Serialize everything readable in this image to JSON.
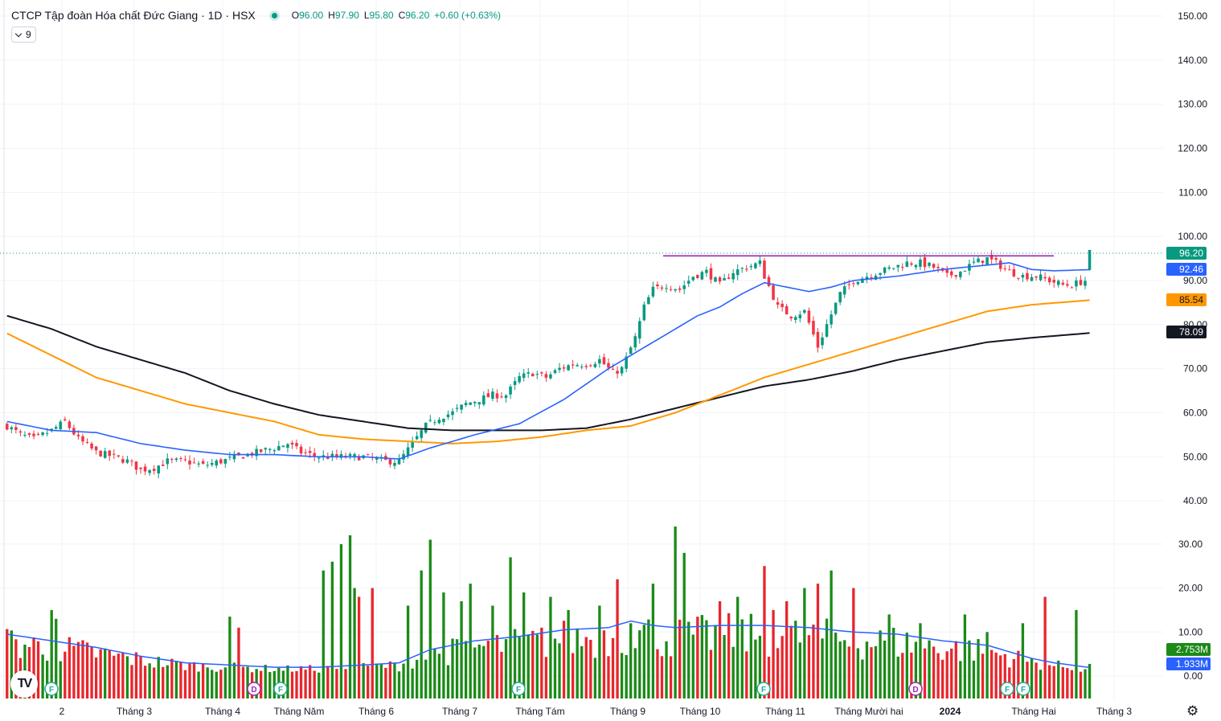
{
  "header": {
    "title": "CTCP Tập đoàn Hóa chất Đức Giang · 1D · HSX",
    "o_key": "O",
    "o_val": "96.00",
    "h_key": "H",
    "h_val": "97.90",
    "l_key": "L",
    "l_val": "95.80",
    "c_key": "C",
    "c_val": "96.20",
    "change": "+0.60 (+0.63%)",
    "indicator_count": "9"
  },
  "colors": {
    "up": "#089981",
    "down": "#f23645",
    "vol_up": "#1b8a17",
    "vol_down": "#e8262c",
    "ma_short": "#2962ff",
    "ma_mid": "#ff9800",
    "ma_long": "#131722",
    "resistance": "#9c27b0",
    "badge_price": "#089981"
  },
  "icons": {
    "logo": "tradingview-logo-icon",
    "settings": "gear-icon"
  },
  "chart_data": {
    "type": "candlestick",
    "y_axis": {
      "price_ticks": [
        "150.00",
        "140.00",
        "130.00",
        "120.00",
        "110.00",
        "100.00",
        "90.00",
        "80.00",
        "70.00",
        "60.00",
        "50.00",
        "40.00"
      ],
      "volume_ticks": [
        "30.00",
        "20.00",
        "10.00",
        "0.00"
      ]
    },
    "x_axis": {
      "labels": [
        "2",
        "Tháng 3",
        "Tháng 4",
        "Tháng Năm",
        "Tháng 6",
        "Tháng 7",
        "Tháng Tám",
        "Tháng 9",
        "Tháng 10",
        "Tháng 11",
        "Tháng Mười hai",
        "2024",
        "Tháng Hai",
        "Tháng 3"
      ],
      "bold": [
        "2024"
      ]
    },
    "price_range": [
      40,
      150
    ],
    "volume_range": [
      0,
      35
    ],
    "badges": {
      "last": "96.20",
      "ma_short": "92.46",
      "ma_mid": "85.54",
      "ma_long": "78.09",
      "vol_last": "2.753M",
      "vol_ma": "1.933M"
    },
    "last_price": 96.2,
    "resistance_level": 95.6,
    "anchors": {
      "close": [
        [
          0,
          57
        ],
        [
          3,
          55
        ],
        [
          6,
          54
        ],
        [
          10,
          56
        ],
        [
          13,
          58
        ],
        [
          16,
          54
        ],
        [
          20,
          51
        ],
        [
          24,
          50
        ],
        [
          27,
          49
        ],
        [
          30,
          47
        ],
        [
          33,
          47.5
        ],
        [
          36,
          49
        ],
        [
          40,
          49
        ],
        [
          44,
          48
        ],
        [
          48,
          49
        ],
        [
          52,
          50
        ],
        [
          56,
          51
        ],
        [
          60,
          52
        ],
        [
          63,
          53
        ],
        [
          66,
          51
        ],
        [
          70,
          50
        ],
        [
          75,
          50
        ],
        [
          80,
          50
        ],
        [
          85,
          49
        ],
        [
          88,
          49
        ],
        [
          91,
          53
        ],
        [
          94,
          57
        ],
        [
          97,
          59
        ],
        [
          100,
          60
        ],
        [
          103,
          62
        ],
        [
          106,
          63
        ],
        [
          109,
          64
        ],
        [
          112,
          64
        ],
        [
          115,
          68
        ],
        [
          118,
          69
        ],
        [
          121,
          68
        ],
        [
          124,
          70
        ],
        [
          127,
          71
        ],
        [
          130,
          71
        ],
        [
          133,
          72
        ],
        [
          136,
          69
        ],
        [
          138,
          70
        ],
        [
          141,
          77
        ],
        [
          143,
          84
        ],
        [
          145,
          88
        ],
        [
          148,
          89
        ],
        [
          151,
          88
        ],
        [
          154,
          91
        ],
        [
          157,
          92
        ],
        [
          160,
          89
        ],
        [
          163,
          92
        ],
        [
          166,
          93
        ],
        [
          169,
          94
        ],
        [
          170,
          91
        ],
        [
          173,
          84
        ],
        [
          176,
          82
        ],
        [
          179,
          83
        ],
        [
          182,
          75
        ],
        [
          184,
          80
        ],
        [
          187,
          87
        ],
        [
          190,
          90
        ],
        [
          193,
          91
        ],
        [
          196,
          92
        ],
        [
          199,
          93
        ],
        [
          202,
          94
        ],
        [
          205,
          94
        ],
        [
          208,
          93
        ],
        [
          211,
          91
        ],
        [
          214,
          92
        ],
        [
          217,
          94
        ],
        [
          220,
          95
        ],
        [
          222,
          94
        ],
        [
          225,
          92
        ],
        [
          228,
          91
        ],
        [
          231,
          91
        ],
        [
          234,
          90
        ],
        [
          237,
          89
        ],
        [
          239,
          89
        ],
        [
          242,
          90
        ],
        [
          243,
          96.2
        ]
      ],
      "ma_short": [
        [
          0,
          58
        ],
        [
          10,
          56
        ],
        [
          20,
          55.5
        ],
        [
          30,
          53
        ],
        [
          40,
          51.5
        ],
        [
          50,
          50.5
        ],
        [
          60,
          50.5
        ],
        [
          70,
          50
        ],
        [
          80,
          50
        ],
        [
          88,
          49.5
        ],
        [
          95,
          52
        ],
        [
          105,
          55
        ],
        [
          115,
          57.5
        ],
        [
          125,
          63
        ],
        [
          135,
          70
        ],
        [
          140,
          73
        ],
        [
          145,
          76
        ],
        [
          150,
          79
        ],
        [
          155,
          82
        ],
        [
          160,
          84
        ],
        [
          165,
          87
        ],
        [
          170,
          89.5
        ],
        [
          175,
          88.5
        ],
        [
          180,
          87.5
        ],
        [
          185,
          88.5
        ],
        [
          190,
          90
        ],
        [
          200,
          91
        ],
        [
          210,
          92.5
        ],
        [
          220,
          93.5
        ],
        [
          225,
          94
        ],
        [
          230,
          92.5
        ],
        [
          235,
          92.2
        ],
        [
          243,
          92.46
        ]
      ],
      "ma_mid": [
        [
          0,
          78
        ],
        [
          20,
          68
        ],
        [
          40,
          62
        ],
        [
          60,
          58
        ],
        [
          70,
          55
        ],
        [
          80,
          54
        ],
        [
          90,
          53.5
        ],
        [
          100,
          53
        ],
        [
          110,
          53.5
        ],
        [
          120,
          54.5
        ],
        [
          130,
          56
        ],
        [
          140,
          57
        ],
        [
          150,
          60
        ],
        [
          160,
          64
        ],
        [
          170,
          68
        ],
        [
          180,
          71
        ],
        [
          190,
          74
        ],
        [
          200,
          77
        ],
        [
          210,
          80
        ],
        [
          220,
          83
        ],
        [
          230,
          84.5
        ],
        [
          243,
          85.54
        ]
      ],
      "ma_long": [
        [
          0,
          82
        ],
        [
          10,
          79
        ],
        [
          20,
          75
        ],
        [
          30,
          72
        ],
        [
          40,
          69
        ],
        [
          50,
          65
        ],
        [
          60,
          62
        ],
        [
          70,
          59.5
        ],
        [
          80,
          58
        ],
        [
          90,
          56.5
        ],
        [
          100,
          56
        ],
        [
          110,
          56
        ],
        [
          120,
          56
        ],
        [
          130,
          56.5
        ],
        [
          140,
          58.5
        ],
        [
          150,
          61
        ],
        [
          160,
          63.5
        ],
        [
          170,
          66
        ],
        [
          180,
          67.5
        ],
        [
          190,
          69.5
        ],
        [
          200,
          72
        ],
        [
          210,
          74
        ],
        [
          220,
          76
        ],
        [
          230,
          77
        ],
        [
          243,
          78.09
        ]
      ],
      "vol_ma": [
        [
          0,
          9.5
        ],
        [
          10,
          8
        ],
        [
          20,
          6.5
        ],
        [
          30,
          4.5
        ],
        [
          40,
          3
        ],
        [
          50,
          2.5
        ],
        [
          60,
          2
        ],
        [
          70,
          2
        ],
        [
          80,
          2.5
        ],
        [
          88,
          3
        ],
        [
          95,
          6
        ],
        [
          105,
          8
        ],
        [
          115,
          9
        ],
        [
          125,
          10.5
        ],
        [
          135,
          11
        ],
        [
          140,
          12.5
        ],
        [
          145,
          11.5
        ],
        [
          150,
          11
        ],
        [
          160,
          11.5
        ],
        [
          170,
          11.5
        ],
        [
          180,
          11
        ],
        [
          185,
          10.5
        ],
        [
          190,
          10
        ],
        [
          200,
          9.5
        ],
        [
          210,
          8
        ],
        [
          220,
          7
        ],
        [
          225,
          5.5
        ],
        [
          230,
          4
        ],
        [
          235,
          3
        ],
        [
          243,
          1.933
        ]
      ]
    },
    "volume_spikes": [
      [
        10,
        15
      ],
      [
        11,
        13
      ],
      [
        50,
        13.5
      ],
      [
        52,
        11
      ],
      [
        71,
        24
      ],
      [
        73,
        26
      ],
      [
        75,
        30
      ],
      [
        77,
        32
      ],
      [
        78,
        20
      ],
      [
        79,
        18
      ],
      [
        82,
        20
      ],
      [
        90,
        16
      ],
      [
        93,
        24
      ],
      [
        95,
        31
      ],
      [
        98,
        19
      ],
      [
        102,
        17
      ],
      [
        104,
        21
      ],
      [
        109,
        16
      ],
      [
        113,
        27
      ],
      [
        116,
        19
      ],
      [
        122,
        18
      ],
      [
        126,
        15
      ],
      [
        133,
        16
      ],
      [
        137,
        22
      ],
      [
        140,
        12
      ],
      [
        145,
        21
      ],
      [
        150,
        34
      ],
      [
        152,
        28
      ],
      [
        160,
        17
      ],
      [
        164,
        18
      ],
      [
        170,
        25
      ],
      [
        172,
        15
      ],
      [
        175,
        17
      ],
      [
        179,
        20
      ],
      [
        182,
        21
      ],
      [
        185,
        24
      ],
      [
        190,
        20
      ],
      [
        198,
        14
      ],
      [
        205,
        12
      ],
      [
        215,
        14
      ],
      [
        220,
        10
      ],
      [
        228,
        12
      ],
      [
        233,
        18
      ],
      [
        240,
        15
      ],
      [
        243,
        2.753
      ]
    ],
    "events": [
      {
        "label": "F",
        "kind": "F"
      },
      {
        "label": "D",
        "kind": "D"
      },
      {
        "label": "F",
        "kind": "F"
      },
      {
        "label": "F",
        "kind": "F"
      },
      {
        "label": "F",
        "kind": "F"
      },
      {
        "label": "D",
        "kind": "D"
      },
      {
        "label": "F",
        "kind": "F"
      },
      {
        "label": "F",
        "kind": "F"
      }
    ]
  }
}
